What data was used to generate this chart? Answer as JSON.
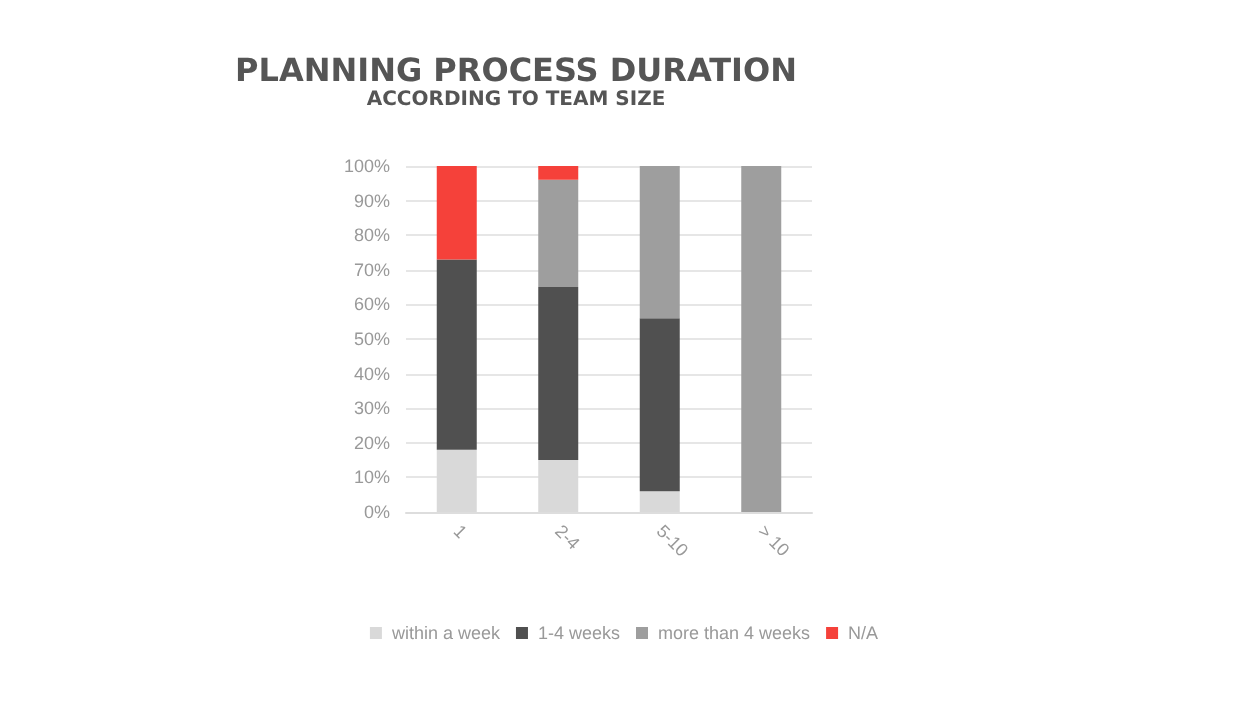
{
  "chart_data": {
    "type": "bar",
    "title": "PLANNING PROCESS DURATION",
    "subtitle": "ACCORDING TO TEAM SIZE",
    "categories": [
      "1",
      "2-4",
      "5-10",
      "> 10"
    ],
    "stacked": true,
    "series": [
      {
        "name": "within a week",
        "color": "#d9d9d9",
        "values": [
          18,
          15,
          6,
          0
        ]
      },
      {
        "name": "1-4 weeks",
        "color": "#505050",
        "values": [
          55,
          50,
          50,
          0
        ]
      },
      {
        "name": "more than 4 weeks",
        "color": "#9e9e9e",
        "values": [
          0,
          31,
          44,
          100
        ]
      },
      {
        "name": "N/A",
        "color": "#f5413a",
        "values": [
          27,
          4,
          0,
          0
        ]
      }
    ],
    "ylim": [
      0,
      100
    ],
    "yticks": [
      {
        "value": 0,
        "label": "0%"
      },
      {
        "value": 10,
        "label": "10%"
      },
      {
        "value": 20,
        "label": "20%"
      },
      {
        "value": 30,
        "label": "30%"
      },
      {
        "value": 40,
        "label": "40%"
      },
      {
        "value": 50,
        "label": "50%"
      },
      {
        "value": 60,
        "label": "60%"
      },
      {
        "value": 70,
        "label": "70%"
      },
      {
        "value": 80,
        "label": "80%"
      },
      {
        "value": 90,
        "label": "90%"
      },
      {
        "value": 100,
        "label": "100%"
      }
    ],
    "grid": "y",
    "legend": "bottom"
  }
}
